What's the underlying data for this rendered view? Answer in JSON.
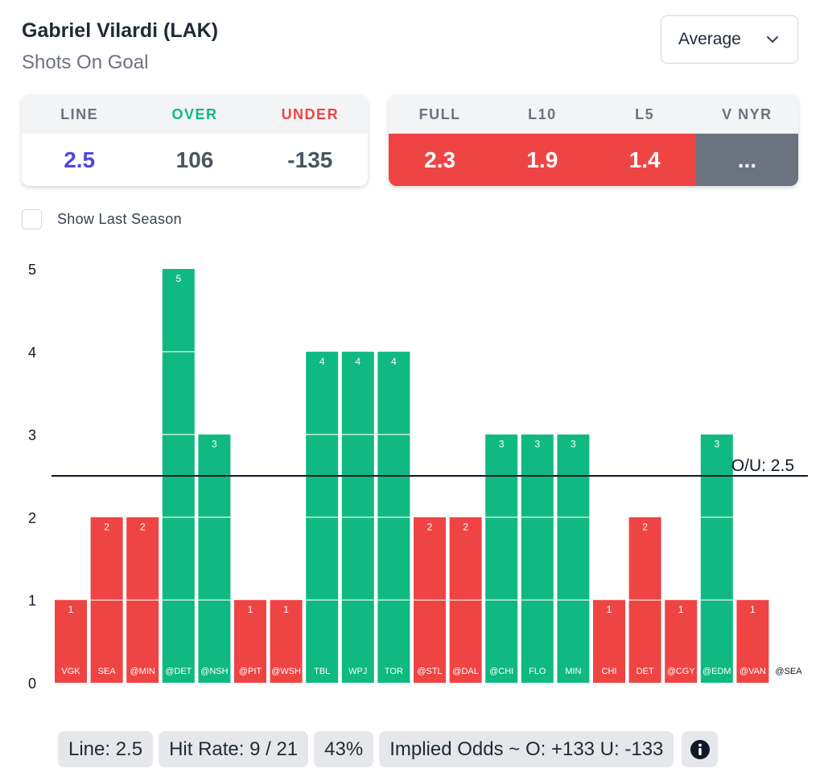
{
  "header": {
    "player": "Gabriel Vilardi (LAK)",
    "stat": "Shots On Goal"
  },
  "dropdown": {
    "selected": "Average"
  },
  "odds_card": {
    "headers": [
      "LINE",
      "OVER",
      "UNDER"
    ],
    "values": [
      "2.5",
      "106",
      "-135"
    ]
  },
  "splits_card": {
    "headers": [
      "FULL",
      "L10",
      "L5",
      "V NYR"
    ],
    "values": [
      "2.3",
      "1.9",
      "1.4",
      "..."
    ]
  },
  "checkbox": {
    "label": "Show Last Season",
    "checked": false
  },
  "colors": {
    "over": "#10b981",
    "under": "#ef4444",
    "line_text": "#4f46e5",
    "neutral": "#6b7280"
  },
  "chart_data": {
    "type": "bar",
    "categories": [
      "VGK",
      "SEA",
      "@MIN",
      "@DET",
      "@NSH",
      "@PIT",
      "@WSH",
      "TBL",
      "WPJ",
      "TOR",
      "@STL",
      "@DAL",
      "@CHI",
      "FLO",
      "MIN",
      "CHI",
      "DET",
      "@CGY",
      "@EDM",
      "@VAN",
      "@SEA"
    ],
    "values": [
      1,
      2,
      2,
      5,
      3,
      1,
      1,
      4,
      4,
      4,
      2,
      2,
      3,
      3,
      3,
      1,
      2,
      1,
      3,
      1,
      null
    ],
    "y_ticks": [
      0,
      1,
      2,
      3,
      4,
      5
    ],
    "ylim": [
      0,
      5
    ],
    "line_value": 2.5,
    "line_label": "O/U: 2.5",
    "over_color": "#10b981",
    "under_color": "#ef4444"
  },
  "footer": {
    "line": "Line: 2.5",
    "hit_rate": "Hit Rate: 9 / 21",
    "percent": "43%",
    "implied": "Implied Odds ~ O: +133 U: -133"
  }
}
